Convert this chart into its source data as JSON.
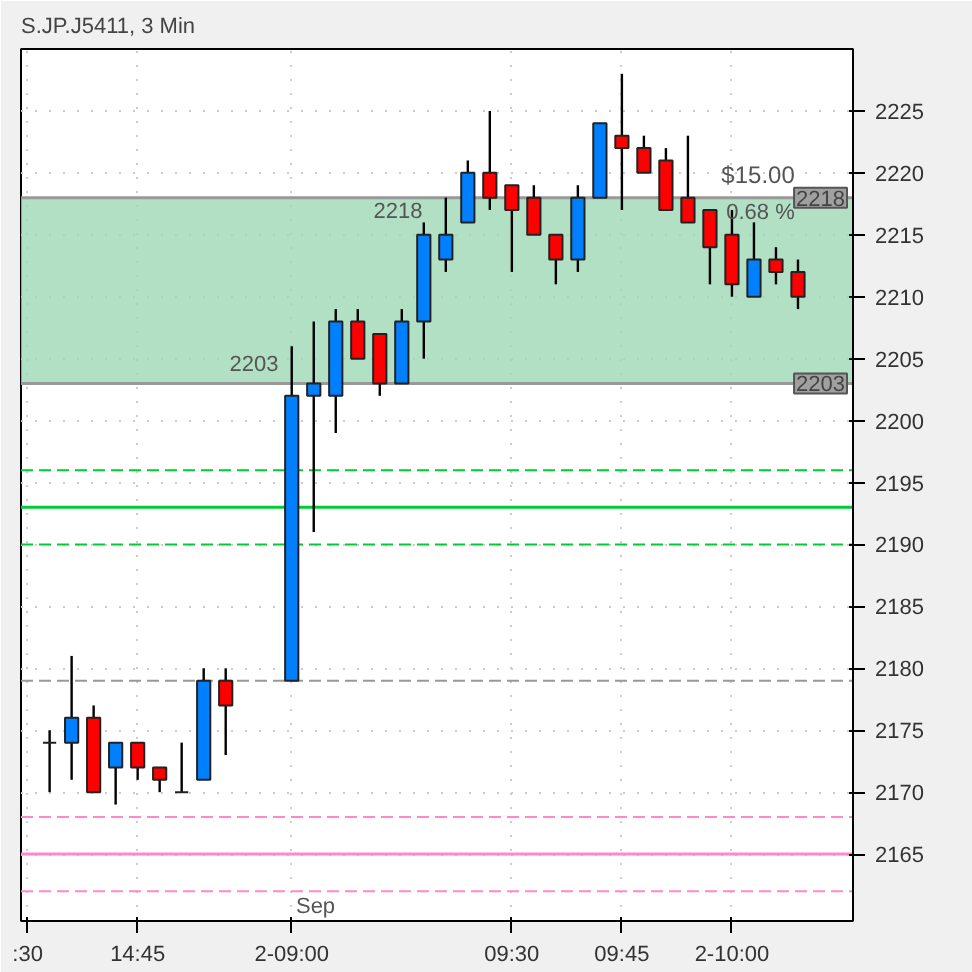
{
  "chart_data": {
    "type": "candlestick",
    "title": "S.JP.J5411, 3 Min",
    "categories": [
      ":30",
      null,
      null,
      null,
      null,
      "14:45",
      null,
      null,
      null,
      null,
      null,
      null,
      "2-09:00",
      null,
      null,
      null,
      null,
      null,
      null,
      null,
      null,
      null,
      "09:30",
      null,
      null,
      null,
      null,
      "09:45",
      null,
      null,
      null,
      null,
      "2-10:00",
      null,
      null,
      null,
      null
    ],
    "ohlc": [
      null,
      [
        2174,
        2175,
        2170,
        2174
      ],
      [
        2174,
        2181,
        2171,
        2176
      ],
      [
        2176,
        2177,
        2170,
        2170
      ],
      [
        2172,
        2174,
        2169,
        2174
      ],
      [
        2174,
        2174,
        2171,
        2172
      ],
      [
        2172,
        2172,
        2170,
        2171
      ],
      [
        2170,
        2174,
        2170,
        2170
      ],
      [
        2171,
        2180,
        2171,
        2179
      ],
      [
        2179,
        2180,
        2173,
        2177
      ],
      null,
      null,
      [
        2179,
        2206,
        2179,
        2202
      ],
      [
        2202,
        2208,
        2191,
        2203
      ],
      [
        2202,
        2209,
        2199,
        2208
      ],
      [
        2208,
        2209,
        2205,
        2205
      ],
      [
        2207,
        2207,
        2202,
        2203
      ],
      [
        2203,
        2209,
        2203,
        2208
      ],
      [
        2208,
        2216,
        2205,
        2215
      ],
      [
        2213,
        2218,
        2212,
        2215
      ],
      [
        2216,
        2221,
        2216,
        2220
      ],
      [
        2220,
        2225,
        2217,
        2218
      ],
      [
        2219,
        2219,
        2212,
        2217
      ],
      [
        2218,
        2219,
        2215,
        2215
      ],
      [
        2215,
        2215,
        2211,
        2213
      ],
      [
        2213,
        2219,
        2212,
        2218
      ],
      [
        2218,
        2224,
        2218,
        2224
      ],
      [
        2223,
        2228,
        2217,
        2222
      ],
      [
        2222,
        2223,
        2220,
        2220
      ],
      [
        2221,
        2222,
        2217,
        2217
      ],
      [
        2218,
        2223,
        2216,
        2216
      ],
      [
        2217,
        2217,
        2211,
        2214
      ],
      [
        2215,
        2217,
        2210,
        2211
      ],
      [
        2210,
        2216,
        2210,
        2213
      ],
      [
        2213,
        2214,
        2211,
        2212
      ],
      [
        2212,
        2213,
        2209,
        2210
      ],
      null
    ],
    "ylim": [
      2159.6,
      2230
    ],
    "yticks": [
      2165,
      2170,
      2175,
      2180,
      2185,
      2190,
      2195,
      2200,
      2205,
      2210,
      2215,
      2220,
      2225
    ],
    "grid": true,
    "ref_lines": [
      {
        "axis": "y",
        "value": 2218,
        "label": "2218",
        "color": "#999999",
        "line_style": "solid"
      },
      {
        "axis": "y",
        "value": 2203,
        "label": "2203",
        "color": "#999999",
        "line_style": "solid"
      },
      {
        "axis": "y",
        "value": 2179,
        "label": null,
        "color": "#999999",
        "line_style": "dashed"
      },
      {
        "axis": "y",
        "value": 2196,
        "label": null,
        "color": "#00cc33",
        "line_style": "dashed"
      },
      {
        "axis": "y",
        "value": 2193,
        "label": null,
        "color": "#00cc33",
        "line_style": "solid"
      },
      {
        "axis": "y",
        "value": 2190,
        "label": null,
        "color": "#00cc33",
        "line_style": "dashed"
      },
      {
        "axis": "y",
        "value": 2168,
        "label": null,
        "color": "#ff88cc",
        "line_style": "dashed"
      },
      {
        "axis": "y",
        "value": 2165,
        "label": null,
        "color": "#ff88cc",
        "line_style": "solid"
      },
      {
        "axis": "y",
        "value": 2162,
        "label": null,
        "color": "#ff88cc",
        "line_style": "dashed"
      }
    ],
    "bands": [
      {
        "axis": "y",
        "from": 2203,
        "to": 2218,
        "label": null,
        "color": "#9dd8b5"
      }
    ],
    "annotations": [
      "2218",
      "2203",
      "$15.00",
      "0.68 %",
      "Sep"
    ]
  }
}
